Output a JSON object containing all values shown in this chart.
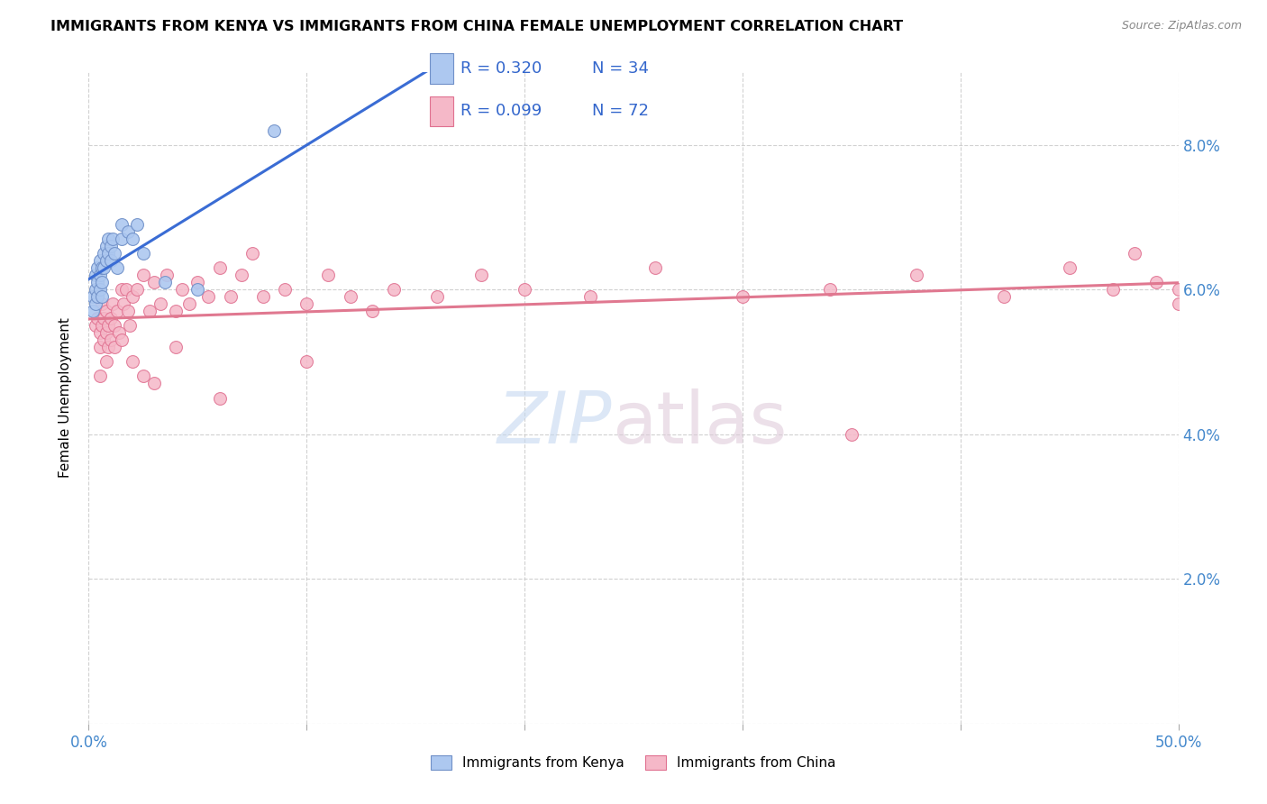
{
  "title": "IMMIGRANTS FROM KENYA VS IMMIGRANTS FROM CHINA FEMALE UNEMPLOYMENT CORRELATION CHART",
  "source": "Source: ZipAtlas.com",
  "ylabel": "Female Unemployment",
  "xlim": [
    0.0,
    0.5
  ],
  "ylim": [
    0.0,
    0.09
  ],
  "xtick_positions": [
    0.0,
    0.1,
    0.2,
    0.3,
    0.4,
    0.5
  ],
  "xticklabels": [
    "0.0%",
    "",
    "",
    "",
    "",
    "50.0%"
  ],
  "ytick_positions": [
    0.0,
    0.02,
    0.04,
    0.06,
    0.08
  ],
  "yticklabels_right": [
    "",
    "2.0%",
    "4.0%",
    "6.0%",
    "8.0%"
  ],
  "kenya_color": "#adc8f0",
  "china_color": "#f5b8c8",
  "kenya_edge": "#7090c8",
  "china_edge": "#e07090",
  "trend_kenya_color": "#3a6cd4",
  "trend_china_color": "#e07890",
  "legend_R_kenya": "R = 0.320",
  "legend_N_kenya": "N = 34",
  "legend_R_china": "R = 0.099",
  "legend_N_china": "N = 72",
  "marker_size": 100,
  "kenya_x": [
    0.002,
    0.002,
    0.003,
    0.003,
    0.003,
    0.004,
    0.004,
    0.004,
    0.005,
    0.005,
    0.005,
    0.006,
    0.006,
    0.006,
    0.007,
    0.007,
    0.008,
    0.008,
    0.009,
    0.009,
    0.01,
    0.01,
    0.011,
    0.012,
    0.013,
    0.015,
    0.015,
    0.018,
    0.02,
    0.022,
    0.025,
    0.035,
    0.05,
    0.085
  ],
  "kenya_y": [
    0.059,
    0.057,
    0.062,
    0.06,
    0.058,
    0.063,
    0.061,
    0.059,
    0.064,
    0.062,
    0.06,
    0.063,
    0.061,
    0.059,
    0.065,
    0.063,
    0.066,
    0.064,
    0.067,
    0.065,
    0.066,
    0.064,
    0.067,
    0.065,
    0.063,
    0.069,
    0.067,
    0.068,
    0.067,
    0.069,
    0.065,
    0.061,
    0.06,
    0.082
  ],
  "china_x": [
    0.003,
    0.004,
    0.005,
    0.005,
    0.006,
    0.006,
    0.007,
    0.007,
    0.008,
    0.008,
    0.009,
    0.009,
    0.01,
    0.01,
    0.011,
    0.012,
    0.013,
    0.014,
    0.015,
    0.016,
    0.017,
    0.018,
    0.019,
    0.02,
    0.022,
    0.025,
    0.028,
    0.03,
    0.033,
    0.036,
    0.04,
    0.043,
    0.046,
    0.05,
    0.055,
    0.06,
    0.065,
    0.07,
    0.075,
    0.08,
    0.09,
    0.1,
    0.11,
    0.12,
    0.13,
    0.14,
    0.16,
    0.18,
    0.2,
    0.23,
    0.26,
    0.3,
    0.34,
    0.38,
    0.42,
    0.45,
    0.47,
    0.49,
    0.5,
    0.5,
    0.005,
    0.008,
    0.012,
    0.015,
    0.02,
    0.025,
    0.03,
    0.04,
    0.06,
    0.1,
    0.35,
    0.48
  ],
  "china_y": [
    0.055,
    0.056,
    0.054,
    0.052,
    0.055,
    0.058,
    0.056,
    0.053,
    0.057,
    0.054,
    0.055,
    0.052,
    0.056,
    0.053,
    0.058,
    0.055,
    0.057,
    0.054,
    0.06,
    0.058,
    0.06,
    0.057,
    0.055,
    0.059,
    0.06,
    0.062,
    0.057,
    0.061,
    0.058,
    0.062,
    0.057,
    0.06,
    0.058,
    0.061,
    0.059,
    0.063,
    0.059,
    0.062,
    0.065,
    0.059,
    0.06,
    0.058,
    0.062,
    0.059,
    0.057,
    0.06,
    0.059,
    0.062,
    0.06,
    0.059,
    0.063,
    0.059,
    0.06,
    0.062,
    0.059,
    0.063,
    0.06,
    0.061,
    0.06,
    0.058,
    0.048,
    0.05,
    0.052,
    0.053,
    0.05,
    0.048,
    0.047,
    0.052,
    0.045,
    0.05,
    0.04,
    0.065
  ],
  "watermark_zip": "ZIP",
  "watermark_atlas": "atlas"
}
